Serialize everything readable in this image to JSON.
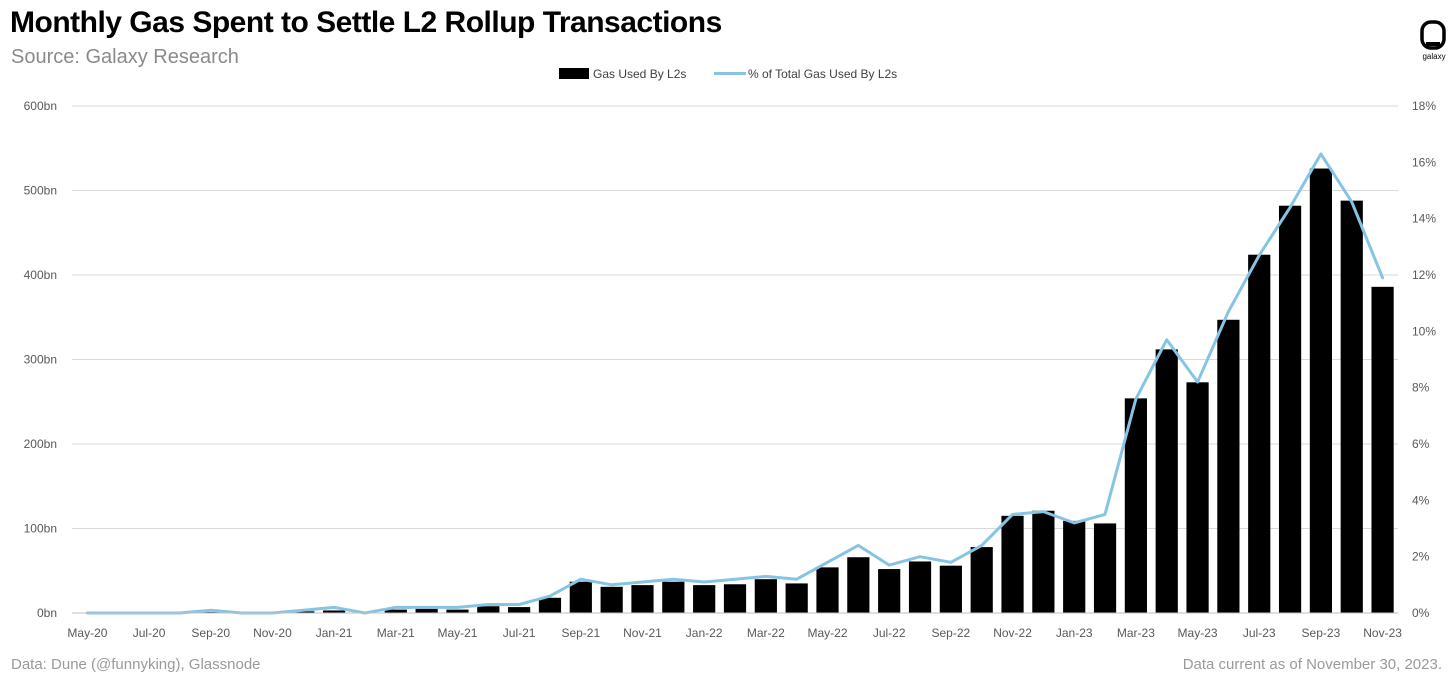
{
  "header": {
    "title": "Monthly Gas Spent to Settle L2 Rollup Transactions",
    "subtitle": "Source: Galaxy Research",
    "logo_text": "galaxy"
  },
  "footer": {
    "left": "Data: Dune (@funnyking), Glassnode",
    "right": "Data current as of November 30, 2023."
  },
  "colors": {
    "bar": "#000000",
    "line": "#87c4e4",
    "grid": "#d9d9d9",
    "axis_text": "#595959"
  },
  "chart_data": {
    "type": "bar",
    "legend_position": "top-center",
    "grid": true,
    "categories": [
      "May-20",
      "Jun-20",
      "Jul-20",
      "Aug-20",
      "Sep-20",
      "Oct-20",
      "Nov-20",
      "Dec-20",
      "Jan-21",
      "Feb-21",
      "Mar-21",
      "Apr-21",
      "May-21",
      "Jun-21",
      "Jul-21",
      "Aug-21",
      "Sep-21",
      "Oct-21",
      "Nov-21",
      "Dec-21",
      "Jan-22",
      "Feb-22",
      "Mar-22",
      "Apr-22",
      "May-22",
      "Jun-22",
      "Jul-22",
      "Aug-22",
      "Sep-22",
      "Oct-22",
      "Nov-22",
      "Dec-22",
      "Jan-23",
      "Feb-23",
      "Mar-23",
      "Apr-23",
      "May-23",
      "Jun-23",
      "Jul-23",
      "Aug-23",
      "Sep-23",
      "Oct-23",
      "Nov-23"
    ],
    "x_tick_labels": [
      "May-20",
      "Jul-20",
      "Sep-20",
      "Nov-20",
      "Jan-21",
      "Mar-21",
      "May-21",
      "Jul-21",
      "Sep-21",
      "Nov-21",
      "Jan-22",
      "Mar-22",
      "May-22",
      "Jul-22",
      "Sep-22",
      "Nov-22",
      "Jan-23",
      "Mar-23",
      "May-23",
      "Jul-23",
      "Sep-23",
      "Nov-23"
    ],
    "series": [
      {
        "name": "Gas Used By L2s",
        "type": "bar",
        "axis": "left",
        "values": [
          0,
          0,
          0,
          0,
          1,
          1,
          1,
          2,
          3,
          1,
          4,
          5,
          4,
          8,
          7,
          18,
          37,
          31,
          33,
          37,
          33,
          34,
          40,
          35,
          54,
          66,
          52,
          61,
          56,
          78,
          115,
          121,
          109,
          106,
          254,
          312,
          273,
          347,
          424,
          482,
          526,
          488,
          386
        ]
      },
      {
        "name": "% of Total Gas Used By L2s",
        "type": "line",
        "axis": "right",
        "values": [
          0.0,
          0.0,
          0.0,
          0.0,
          0.1,
          0.0,
          0.0,
          0.1,
          0.2,
          0.0,
          0.2,
          0.2,
          0.2,
          0.3,
          0.3,
          0.6,
          1.2,
          1.0,
          1.1,
          1.2,
          1.1,
          1.2,
          1.3,
          1.2,
          1.8,
          2.4,
          1.7,
          2.0,
          1.8,
          2.4,
          3.5,
          3.6,
          3.2,
          3.5,
          7.6,
          9.7,
          8.2,
          10.7,
          12.7,
          14.4,
          16.3,
          14.6,
          11.9
        ]
      }
    ],
    "y_left": {
      "min": 0,
      "max": 600,
      "ticks": [
        "0bn",
        "100bn",
        "200bn",
        "300bn",
        "400bn",
        "500bn",
        "600bn"
      ]
    },
    "y_right": {
      "min": 0,
      "max": 18,
      "ticks": [
        "0%",
        "2%",
        "4%",
        "6%",
        "8%",
        "10%",
        "12%",
        "14%",
        "16%",
        "18%"
      ]
    }
  }
}
